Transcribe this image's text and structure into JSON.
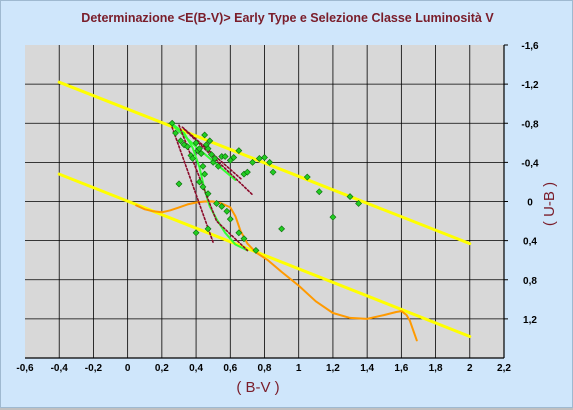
{
  "chart_data": {
    "type": "scatter",
    "title": "Determinazione <E(B-V)> Early Type e Selezione Classe Luminosità V",
    "xlabel": "( B-V )",
    "ylabel": "( U-B )",
    "xlim": [
      -0.6,
      2.2
    ],
    "ylim": [
      -1.6,
      1.6
    ],
    "y_inverted": true,
    "grid": true,
    "x_ticks": [
      "-0,6",
      "-0,4",
      "-0,2",
      "0",
      "0,2",
      "0,4",
      "0,6",
      "0,8",
      "1",
      "1,2",
      "1,4",
      "1,6",
      "1,8",
      "2",
      "2,2"
    ],
    "y_ticks": [
      "-1,6",
      "-1,2",
      "-0,8",
      "-0,4",
      "0",
      "0,4",
      "0,8",
      "1,2"
    ],
    "series": [
      {
        "kind": "line",
        "color": "#ffff00",
        "points": [
          [
            -0.4,
            -1.22
          ],
          [
            2.0,
            0.43
          ]
        ]
      },
      {
        "kind": "line",
        "color": "#ffff00",
        "points": [
          [
            -0.4,
            -0.28
          ],
          [
            2.0,
            1.38
          ]
        ]
      },
      {
        "kind": "line",
        "color": "#ff9a00",
        "points": [
          [
            0.05,
            0.04
          ],
          [
            0.1,
            0.08
          ],
          [
            0.15,
            0.1
          ],
          [
            0.2,
            0.11
          ],
          [
            0.25,
            0.09
          ],
          [
            0.3,
            0.06
          ],
          [
            0.35,
            0.03
          ],
          [
            0.4,
            0.01
          ],
          [
            0.45,
            0.0
          ],
          [
            0.5,
            0.0
          ],
          [
            0.55,
            0.02
          ],
          [
            0.6,
            0.06
          ],
          [
            0.63,
            0.15
          ],
          [
            0.66,
            0.3
          ],
          [
            0.7,
            0.43
          ],
          [
            0.75,
            0.52
          ],
          [
            0.82,
            0.6
          ],
          [
            0.9,
            0.72
          ],
          [
            1.0,
            0.86
          ],
          [
            1.1,
            1.02
          ],
          [
            1.2,
            1.14
          ],
          [
            1.3,
            1.19
          ],
          [
            1.4,
            1.2
          ],
          [
            1.5,
            1.16
          ],
          [
            1.57,
            1.13
          ],
          [
            1.6,
            1.12
          ],
          [
            1.63,
            1.16
          ],
          [
            1.65,
            1.22
          ],
          [
            1.67,
            1.32
          ],
          [
            1.69,
            1.42
          ]
        ]
      },
      {
        "kind": "line",
        "color": "#33ff33",
        "points": [
          [
            0.27,
            -0.78
          ],
          [
            0.33,
            -0.7
          ],
          [
            0.38,
            -0.55
          ],
          [
            0.42,
            -0.35
          ],
          [
            0.45,
            -0.12
          ],
          [
            0.48,
            0.05
          ],
          [
            0.52,
            0.18
          ],
          [
            0.57,
            0.32
          ],
          [
            0.63,
            0.44
          ],
          [
            0.7,
            0.5
          ]
        ]
      },
      {
        "kind": "line",
        "color": "#33ff33",
        "points": [
          [
            0.25,
            -0.8
          ],
          [
            0.4,
            -0.56
          ],
          [
            0.52,
            -0.38
          ],
          [
            0.63,
            -0.22
          ]
        ]
      },
      {
        "kind": "line",
        "color": "#8b0a2a",
        "dashed": true,
        "points": [
          [
            0.3,
            -0.78
          ],
          [
            0.52,
            0.2
          ],
          [
            0.7,
            0.5
          ]
        ]
      },
      {
        "kind": "line",
        "color": "#8b0a2a",
        "dashed": true,
        "points": [
          [
            0.26,
            -0.76
          ],
          [
            0.5,
            0.42
          ]
        ]
      },
      {
        "kind": "line",
        "color": "#8b0a2a",
        "dashed": true,
        "points": [
          [
            0.33,
            -0.74
          ],
          [
            0.73,
            -0.07
          ]
        ]
      },
      {
        "kind": "line",
        "color": "#8b0a2a",
        "dashed": true,
        "points": [
          [
            0.32,
            -0.76
          ],
          [
            0.67,
            -0.22
          ]
        ]
      },
      {
        "kind": "scatter",
        "color": "#22cc22",
        "points": [
          [
            0.26,
            -0.8
          ],
          [
            0.28,
            -0.7
          ],
          [
            0.31,
            -0.62
          ],
          [
            0.33,
            -0.58
          ],
          [
            0.35,
            -0.56
          ],
          [
            0.37,
            -0.47
          ],
          [
            0.38,
            -0.44
          ],
          [
            0.4,
            -0.6
          ],
          [
            0.41,
            -0.52
          ],
          [
            0.42,
            -0.54
          ],
          [
            0.43,
            -0.49
          ],
          [
            0.44,
            -0.36
          ],
          [
            0.45,
            -0.68
          ],
          [
            0.45,
            -0.28
          ],
          [
            0.46,
            -0.58
          ],
          [
            0.47,
            -0.54
          ],
          [
            0.48,
            -0.62
          ],
          [
            0.49,
            -0.48
          ],
          [
            0.5,
            -0.4
          ],
          [
            0.51,
            -0.44
          ],
          [
            0.53,
            -0.36
          ],
          [
            0.55,
            -0.46
          ],
          [
            0.57,
            -0.46
          ],
          [
            0.6,
            -0.42
          ],
          [
            0.62,
            -0.45
          ],
          [
            0.65,
            -0.52
          ],
          [
            0.68,
            -0.28
          ],
          [
            0.7,
            -0.3
          ],
          [
            0.73,
            -0.4
          ],
          [
            0.77,
            -0.44
          ],
          [
            0.8,
            -0.45
          ],
          [
            0.83,
            -0.4
          ],
          [
            0.85,
            -0.3
          ],
          [
            0.42,
            -0.2
          ],
          [
            0.44,
            -0.15
          ],
          [
            0.47,
            -0.08
          ],
          [
            0.3,
            -0.18
          ],
          [
            0.52,
            0.02
          ],
          [
            0.55,
            0.05
          ],
          [
            0.58,
            0.1
          ],
          [
            0.6,
            0.18
          ],
          [
            0.65,
            0.32
          ],
          [
            0.68,
            0.38
          ],
          [
            0.4,
            0.32
          ],
          [
            0.47,
            0.28
          ],
          [
            0.75,
            0.5
          ],
          [
            0.9,
            0.28
          ],
          [
            1.05,
            -0.25
          ],
          [
            1.12,
            -0.1
          ],
          [
            1.2,
            0.16
          ],
          [
            1.3,
            -0.05
          ],
          [
            1.35,
            0.02
          ]
        ]
      }
    ]
  }
}
